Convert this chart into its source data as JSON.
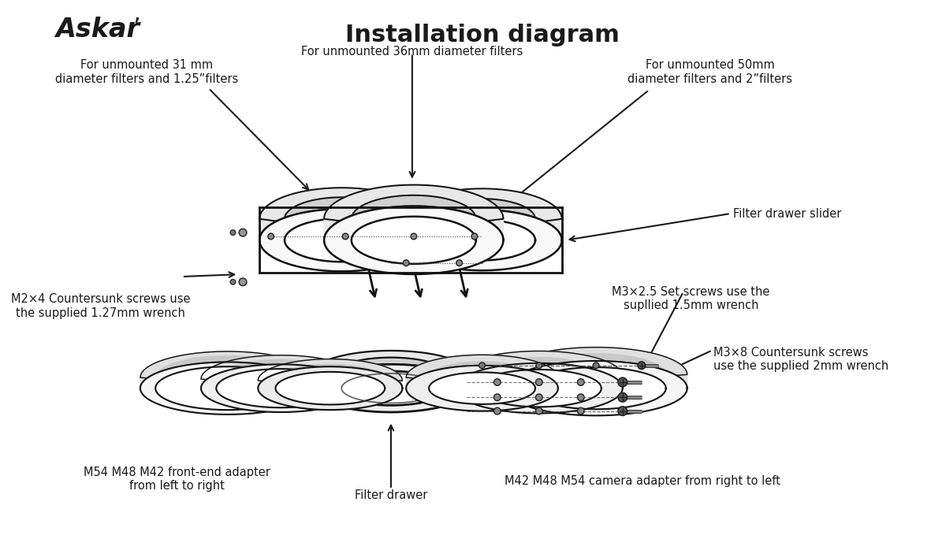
{
  "title": "Installation diagram",
  "brand": "Askar’",
  "background_color": "#ffffff",
  "text_color": "#1a1a1a",
  "labels": {
    "top_center": "For unmounted 36mm diameter filters",
    "top_left": "For unmounted 31 mm\ndiameter filters and 1.25”filters",
    "top_right": "For unmounted 50mm\ndiameter filters and 2”filters",
    "right_upper": "Filter drawer slider",
    "left_lower": "M2×4 Countersunk screws use\nthe supplied 1.27mm wrench",
    "right_middle": "M3×2.5 Set screws use the\nsupllied 1.5mm wrench",
    "right_lower": "M3×8 Countersunk screws\nuse the supplied 2mm wrench",
    "bottom_left": "M54 M48 M42 front-end adapter\nfrom left to right",
    "bottom_center": "Filter drawer",
    "bottom_right": "M42 M48 M54 camera adapter from right to left"
  },
  "figsize": [
    11.81,
    7.03
  ],
  "dpi": 100
}
